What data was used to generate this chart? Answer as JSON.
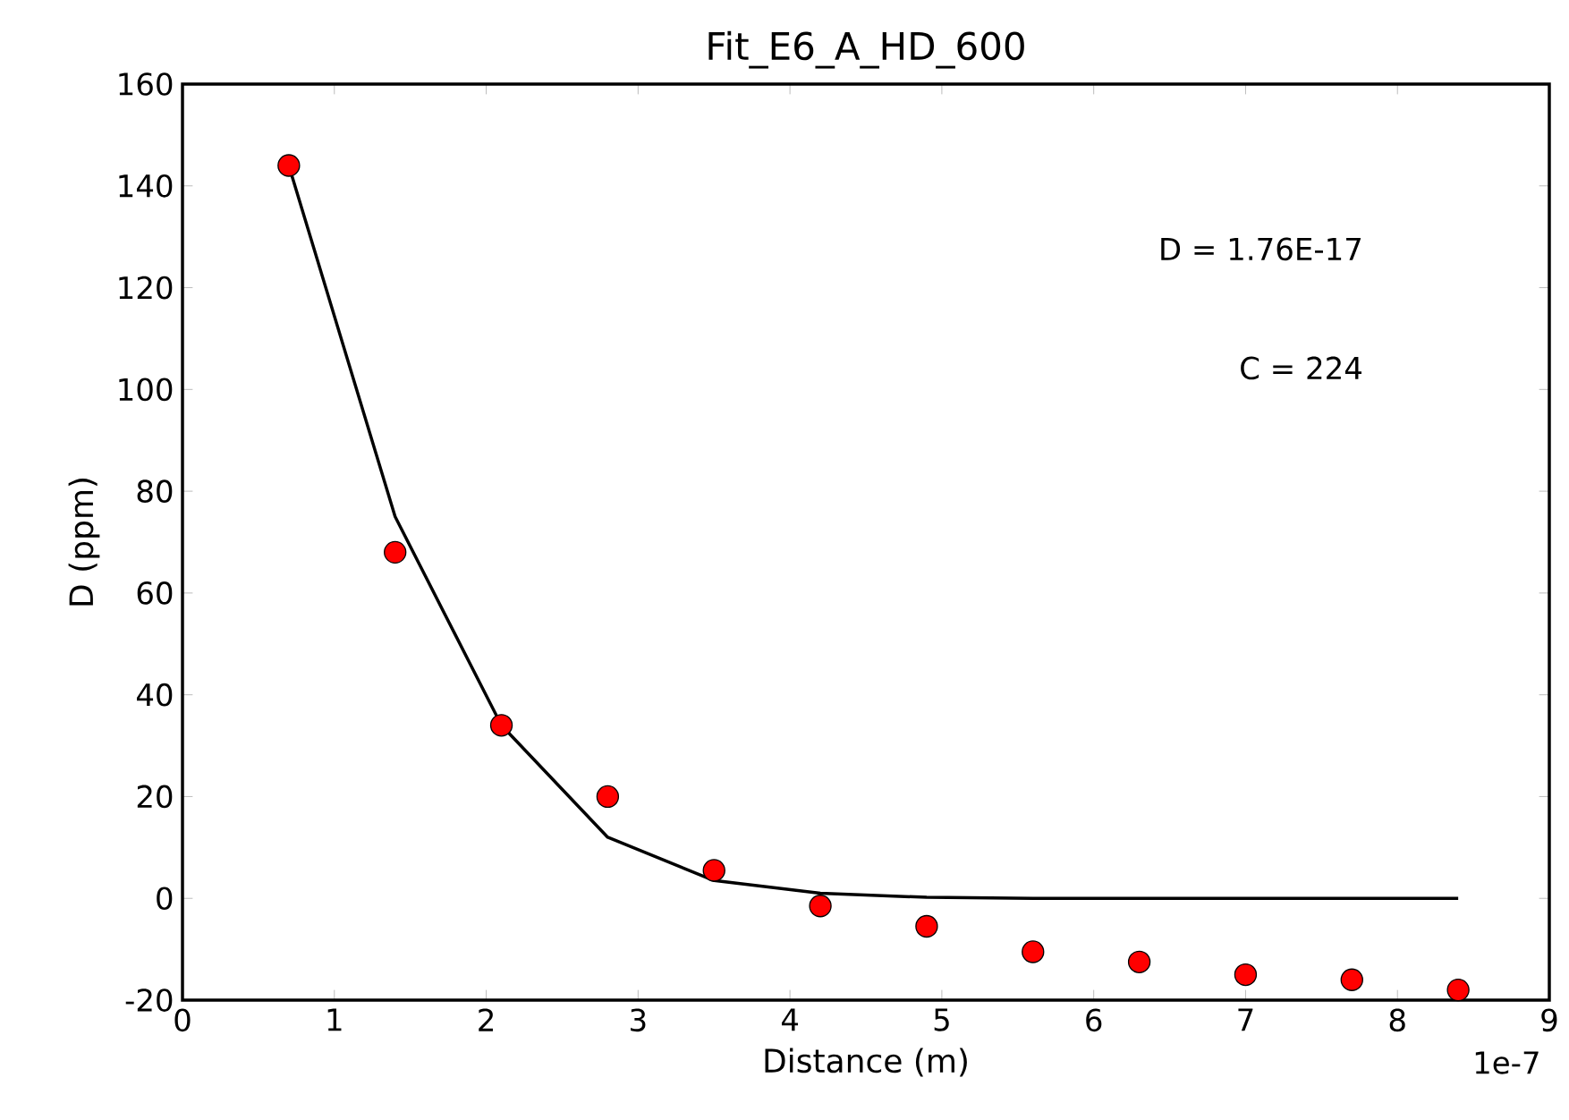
{
  "chart_data": {
    "type": "scatter",
    "title": "Fit_E6_A_HD_600",
    "xlabel": "Distance (m)",
    "ylabel": "D (ppm)",
    "annotations": [
      "D = 1.76E-17",
      "C = 224",
      "1e-7"
    ],
    "series": [
      {
        "color": "#ff0000",
        "marker": "circle",
        "x": [
          0.7,
          1.4,
          2.1,
          2.8,
          3.5,
          4.2,
          4.9,
          5.6,
          6.3,
          7.0,
          7.7,
          8.4
        ],
        "values": [
          144,
          68,
          34,
          20,
          5.5,
          -1.5,
          -5.5,
          -10.5,
          -12.5,
          -15,
          -16,
          -18
        ]
      },
      {
        "type": "line",
        "color": "#000000",
        "marker": "none",
        "line_style": "solid",
        "x": [
          0.7,
          1.4,
          2.1,
          2.8,
          3.5,
          4.2,
          4.9,
          5.6,
          6.3,
          7.0,
          7.7,
          8.4
        ],
        "values": [
          144,
          75,
          34,
          12,
          3.5,
          1,
          0.2,
          0,
          0,
          0,
          0,
          0
        ]
      }
    ],
    "xlim": [
      0,
      9
    ],
    "xticks": [
      0,
      1,
      2,
      3,
      4,
      5,
      6,
      7,
      8,
      9
    ],
    "ylim": [
      -20,
      160
    ],
    "yticks": [
      -20,
      0,
      20,
      40,
      60,
      80,
      100,
      120,
      140,
      160
    ],
    "grid": false
  }
}
